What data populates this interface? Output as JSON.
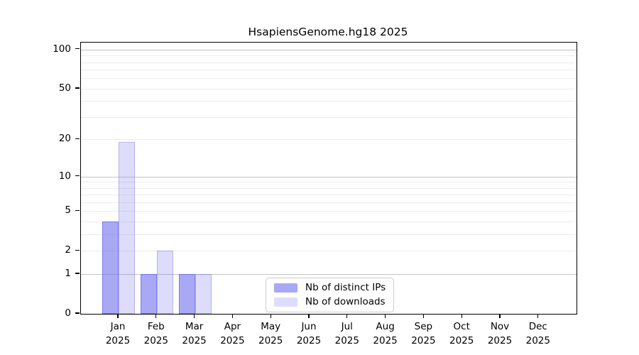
{
  "title": "HsapiensGenome.hg18 2025",
  "colors": {
    "bar_base": "#6666ee",
    "bar_alpha_ips": 0.57,
    "bar_alpha_downloads": 0.22,
    "grid_major": "#c3c3c3",
    "grid_minor": "#ececec",
    "axis": "#000000",
    "background": "#ffffff",
    "legend_border": "#cccccc"
  },
  "chart_data": {
    "type": "bar",
    "title": "HsapiensGenome.hg18 2025",
    "xlabel": "",
    "ylabel": "",
    "yscale": "log1p",
    "ylim": [
      0,
      113
    ],
    "grid": true,
    "legend_position": "bottom-center",
    "year": "2025",
    "months": [
      "Jan",
      "Feb",
      "Mar",
      "Apr",
      "May",
      "Jun",
      "Jul",
      "Aug",
      "Sep",
      "Oct",
      "Nov",
      "Dec"
    ],
    "categories": [
      "Jan 2025",
      "Feb 2025",
      "Mar 2025",
      "Apr 2025",
      "May 2025",
      "Jun 2025",
      "Jul 2025",
      "Aug 2025",
      "Sep 2025",
      "Oct 2025",
      "Nov 2025",
      "Dec 2025"
    ],
    "series": [
      {
        "name": "Nb of distinct IPs",
        "color_base": "#6666ee",
        "alpha": 0.57,
        "values": [
          4,
          1,
          1,
          0,
          0,
          0,
          0,
          0,
          0,
          0,
          0,
          0
        ]
      },
      {
        "name": "Nb of downloads",
        "color_base": "#6666ee",
        "alpha": 0.22,
        "values": [
          19,
          2,
          1,
          0,
          0,
          0,
          0,
          0,
          0,
          0,
          0,
          0
        ]
      }
    ],
    "yticks": [
      0,
      1,
      2,
      5,
      10,
      20,
      50,
      100
    ],
    "major_gridlines": [
      1,
      10,
      100
    ],
    "minor_gridlines": [
      2,
      3,
      4,
      5,
      6,
      7,
      8,
      9,
      20,
      30,
      40,
      50,
      60,
      70,
      80,
      90
    ]
  }
}
